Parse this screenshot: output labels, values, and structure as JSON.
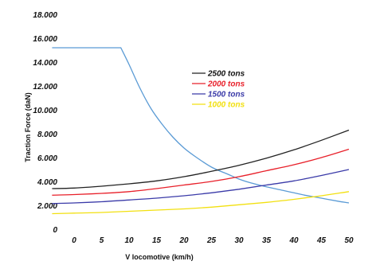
{
  "chart_data": {
    "type": "line",
    "title": "",
    "xlabel": "V locomotive (km/h)",
    "ylabel": "Traction Force (daN)",
    "xlim": [
      0,
      50
    ],
    "ylim": [
      0,
      18000
    ],
    "x_ticks": [
      "0",
      "5",
      "10",
      "15",
      "20",
      "25",
      "30",
      "35",
      "40",
      "45",
      "50"
    ],
    "y_ticks": [
      "0",
      "2.000",
      "4.000",
      "6.000",
      "8.000",
      "10.000",
      "12.000",
      "14.000",
      "16.000",
      "18.000"
    ],
    "grid": false,
    "legend_placement": "center",
    "series": [
      {
        "name": "",
        "color": "#5b9bd5",
        "x": [
          -4,
          8.5,
          10,
          12,
          14,
          16,
          18,
          20,
          22,
          25,
          28,
          30,
          32,
          35,
          38,
          40,
          42,
          45,
          48,
          50
        ],
        "y": [
          15200,
          15200,
          13800,
          11800,
          10100,
          8800,
          7700,
          6800,
          6100,
          5200,
          4600,
          4200,
          3900,
          3550,
          3250,
          3050,
          2850,
          2600,
          2350,
          2200
        ]
      },
      {
        "name": "2500 tons",
        "color": "#222222",
        "x": [
          -4,
          0,
          5,
          10,
          15,
          20,
          25,
          30,
          35,
          40,
          45,
          50
        ],
        "y": [
          3400,
          3450,
          3600,
          3800,
          4050,
          4400,
          4850,
          5350,
          5950,
          6650,
          7450,
          8300
        ]
      },
      {
        "name": "2000 tons",
        "color": "#e8202a",
        "x": [
          -4,
          0,
          5,
          10,
          15,
          20,
          25,
          30,
          35,
          40,
          45,
          50
        ],
        "y": [
          2850,
          2900,
          3000,
          3150,
          3400,
          3700,
          4000,
          4400,
          4900,
          5400,
          6000,
          6700
        ]
      },
      {
        "name": "1500 tons",
        "color": "#3a3aa8",
        "x": [
          -4,
          0,
          5,
          10,
          15,
          20,
          25,
          30,
          35,
          40,
          45,
          50
        ],
        "y": [
          2150,
          2200,
          2300,
          2450,
          2600,
          2800,
          3050,
          3350,
          3700,
          4050,
          4500,
          5000
        ]
      },
      {
        "name": "1000 tons",
        "color": "#f2e010",
        "x": [
          -4,
          0,
          5,
          10,
          15,
          20,
          25,
          30,
          35,
          40,
          45,
          50
        ],
        "y": [
          1300,
          1350,
          1400,
          1500,
          1600,
          1700,
          1850,
          2050,
          2250,
          2500,
          2800,
          3150
        ]
      }
    ]
  }
}
